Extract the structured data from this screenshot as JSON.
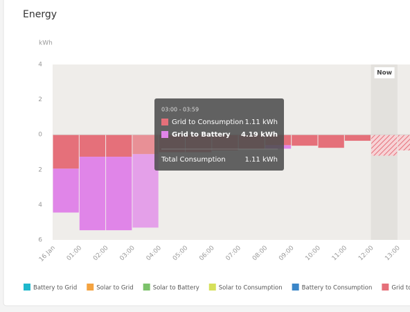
{
  "chart_data": {
    "type": "bar",
    "stacked": true,
    "title": "Energy",
    "y_label": "kWh",
    "categories": [
      "16 Jan",
      "01:00",
      "02:00",
      "03:00",
      "04:00",
      "05:00",
      "06:00",
      "07:00",
      "08:00",
      "09:00",
      "10:00",
      "11:00",
      "12:00",
      "13:00"
    ],
    "series": [
      {
        "name": "Battery to Grid",
        "color": "#1fb8cc",
        "values": [
          0,
          0,
          0,
          0,
          0,
          0,
          0,
          0,
          0,
          0,
          0,
          0,
          0,
          0
        ]
      },
      {
        "name": "Solar to Grid",
        "color": "#f4a340",
        "values": [
          0,
          0,
          0,
          0,
          0,
          0,
          0,
          0,
          0,
          0,
          0,
          0,
          0,
          0
        ]
      },
      {
        "name": "Solar to Battery",
        "color": "#7cc26b",
        "values": [
          0,
          0,
          0,
          0,
          0,
          0,
          0,
          0,
          0,
          0,
          0,
          0,
          0,
          0
        ]
      },
      {
        "name": "Solar to Consumption",
        "color": "#d6e05a",
        "values": [
          0,
          0,
          0,
          0,
          0,
          0,
          0,
          0,
          0,
          0,
          0,
          0,
          0,
          0
        ]
      },
      {
        "name": "Battery to Consumption",
        "color": "#3b86c8",
        "values": [
          0,
          0,
          0,
          0,
          0,
          0,
          0,
          0,
          0,
          0,
          0,
          0,
          0,
          0
        ]
      },
      {
        "name": "Grid to Consumption",
        "color": "#e5707a",
        "values": [
          -1.94,
          -1.26,
          -1.26,
          -1.11,
          -1.0,
          -1.0,
          -0.9,
          -0.8,
          -0.6,
          -0.63,
          -0.75,
          -0.35,
          -1.2,
          -0.9
        ]
      },
      {
        "name": "Grid to Battery",
        "color": "#e085e8",
        "values": [
          -2.5,
          -4.19,
          -4.19,
          -4.19,
          0,
          0,
          0,
          0,
          -0.2,
          0,
          0,
          0,
          0,
          0
        ]
      }
    ],
    "ylim": [
      4,
      -6
    ],
    "yticks": [
      4,
      2,
      0,
      {
        "value": -2,
        "label": "2"
      },
      {
        "value": -4,
        "label": "4"
      },
      {
        "value": -6,
        "label": "6"
      }
    ],
    "now": {
      "label": "Now",
      "category": "12:00"
    },
    "tooltip": {
      "category": "03:00",
      "title": "03:00 - 03:59",
      "rows": [
        {
          "name": "Grid to Consumption",
          "value": "1.11 kWh",
          "color": "#e5707a"
        },
        {
          "name": "Grid to Battery",
          "value": "4.19 kWh",
          "color": "#e085e8"
        }
      ],
      "total": {
        "name": "Total Consumption",
        "value": "1.11 kWh"
      }
    }
  }
}
